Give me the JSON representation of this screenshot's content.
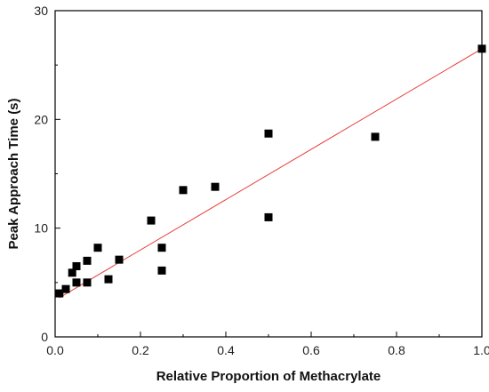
{
  "chart_data": {
    "type": "scatter",
    "title": "",
    "xlabel": "Relative Proportion of Methacrylate",
    "ylabel": "Peak Approach Time (s)",
    "xlim": [
      0,
      1.0
    ],
    "ylim": [
      0,
      30
    ],
    "xticks": [
      0.0,
      0.2,
      0.4,
      0.6,
      0.8,
      1.0
    ],
    "xtick_labels": [
      "0.0",
      "0.2",
      "0.4",
      "0.6",
      "0.8",
      "1.0"
    ],
    "yticks": [
      0,
      10,
      20,
      30
    ],
    "ytick_labels": [
      "0",
      "10",
      "20",
      "30"
    ],
    "grid": false,
    "legend": "none",
    "colors": {
      "points": "#000000",
      "trendline": "#e8413c",
      "axes": "#000000"
    },
    "series": [
      {
        "x": [
          0.01,
          0.025,
          0.04,
          0.05,
          0.05,
          0.075,
          0.075,
          0.1,
          0.125,
          0.15,
          0.225,
          0.25,
          0.25,
          0.3,
          0.375,
          0.5,
          0.5,
          0.75,
          1.0
        ],
        "y": [
          4.0,
          4.4,
          5.9,
          5.0,
          6.5,
          5.0,
          7.0,
          8.2,
          5.3,
          7.1,
          10.7,
          6.1,
          8.2,
          13.5,
          13.8,
          18.7,
          11.0,
          18.4,
          26.5
        ]
      }
    ],
    "trendline": {
      "x": [
        0.01,
        1.0
      ],
      "y": [
        3.6,
        26.5
      ]
    }
  }
}
